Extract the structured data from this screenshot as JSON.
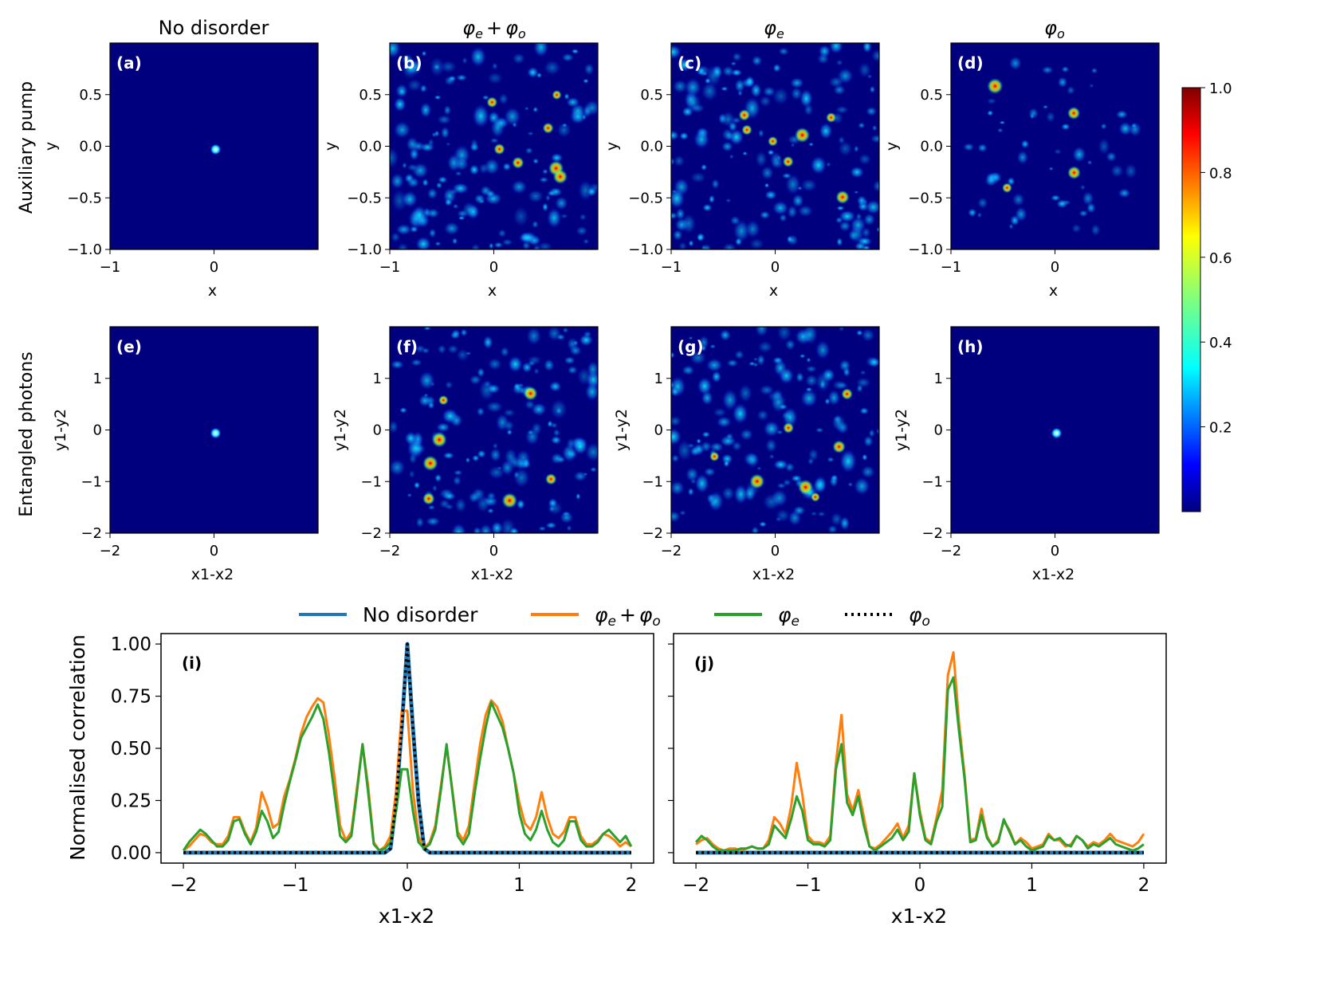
{
  "chart_data": [
    {
      "type": "heatmap",
      "panels": [
        {
          "id": "a",
          "label": "(a)",
          "row": 0,
          "col": 0,
          "pattern": "spot",
          "xlabel": "x",
          "ylabel": "y"
        },
        {
          "id": "b",
          "label": "(b)",
          "row": 0,
          "col": 1,
          "pattern": "speckle",
          "xlabel": "x",
          "ylabel": "y"
        },
        {
          "id": "c",
          "label": "(c)",
          "row": 0,
          "col": 2,
          "pattern": "speckle",
          "xlabel": "x",
          "ylabel": "y"
        },
        {
          "id": "d",
          "label": "(d)",
          "row": 0,
          "col": 3,
          "pattern": "sparse",
          "xlabel": "x",
          "ylabel": "y"
        },
        {
          "id": "e",
          "label": "(e)",
          "row": 1,
          "col": 0,
          "pattern": "spot",
          "xlabel": "x1-x2",
          "ylabel": "y1-y2"
        },
        {
          "id": "f",
          "label": "(f)",
          "row": 1,
          "col": 1,
          "pattern": "speckle",
          "xlabel": "x1-x2",
          "ylabel": "y1-y2"
        },
        {
          "id": "g",
          "label": "(g)",
          "row": 1,
          "col": 2,
          "pattern": "speckle",
          "xlabel": "x1-x2",
          "ylabel": "y1-y2"
        },
        {
          "id": "h",
          "label": "(h)",
          "row": 1,
          "col": 3,
          "pattern": "spot",
          "xlabel": "x1-x2",
          "ylabel": "y1-y2"
        }
      ],
      "column_titles": [
        "No disorder",
        "φe + φo",
        "φe",
        "φo"
      ],
      "column_title_parts": [
        {
          "main": "No disorder"
        },
        {
          "main": "φ",
          "sub": "e",
          "plus": "+",
          "main2": "φ",
          "sub2": "o"
        },
        {
          "main": "φ",
          "sub": "e"
        },
        {
          "main": "φ",
          "sub": "o"
        }
      ],
      "row_titles": [
        "Auxiliary pump",
        "Entangled photons"
      ],
      "row0_axes": {
        "xlim": [
          -1.0,
          1.0
        ],
        "ylim": [
          -1.0,
          1.0
        ],
        "xticks": [
          -1,
          0
        ],
        "xtick_labels": [
          "−1",
          "0"
        ],
        "yticks": [
          -1.0,
          -0.5,
          0.0,
          0.5
        ],
        "ytick_labels": [
          "−1.0",
          "−0.5",
          "0.0",
          "0.5"
        ]
      },
      "row1_axes": {
        "xlim": [
          -2.0,
          2.0
        ],
        "ylim": [
          -2.0,
          2.0
        ],
        "xticks": [
          -2,
          0
        ],
        "xtick_labels": [
          "−2",
          "0"
        ],
        "yticks": [
          -2,
          -1,
          0,
          1
        ],
        "ytick_labels": [
          "−2",
          "−1",
          "0",
          "1"
        ]
      },
      "colorbar": {
        "range": [
          0.0,
          1.0
        ],
        "ticks": [
          0.2,
          0.4,
          0.6,
          0.8,
          1.0
        ],
        "tick_labels": [
          "0.2",
          "0.4",
          "0.6",
          "0.8",
          "1.0"
        ],
        "colormap": "jet"
      }
    },
    {
      "type": "line",
      "panels": [
        {
          "id": "i",
          "label": "(i)"
        },
        {
          "id": "j",
          "label": "(j)"
        }
      ],
      "xlabel": "x1-x2",
      "ylabel": "Normalised correlation",
      "xlim": [
        -2.2,
        2.2
      ],
      "ylim": [
        -0.05,
        1.05
      ],
      "xticks": [
        -2,
        -1,
        0,
        1,
        2
      ],
      "xtick_labels": [
        "−2",
        "−1",
        "0",
        "1",
        "2"
      ],
      "yticks": [
        0.0,
        0.25,
        0.5,
        0.75,
        1.0
      ],
      "ytick_labels": [
        "0.00",
        "0.25",
        "0.50",
        "0.75",
        "1.00"
      ],
      "legend": [
        {
          "name": "No disorder",
          "color": "#1f77b4",
          "style": "solid"
        },
        {
          "name": "φe + φo",
          "color": "#ff7f0e",
          "style": "solid"
        },
        {
          "name": "φe",
          "color": "#2ca02c",
          "style": "solid"
        },
        {
          "name": "φo",
          "color": "#000000",
          "style": "dotted"
        }
      ],
      "legend_parts": [
        {
          "main": "No disorder"
        },
        {
          "main": "φ",
          "sub": "e",
          "plus": "+",
          "main2": "φ",
          "sub2": "o"
        },
        {
          "main": "φ",
          "sub": "e"
        },
        {
          "main": "φ",
          "sub": "o"
        }
      ],
      "x": [
        -2.0,
        -1.95,
        -1.9,
        -1.85,
        -1.8,
        -1.75,
        -1.7,
        -1.65,
        -1.6,
        -1.55,
        -1.5,
        -1.45,
        -1.4,
        -1.35,
        -1.3,
        -1.25,
        -1.2,
        -1.15,
        -1.1,
        -1.05,
        -1.0,
        -0.95,
        -0.9,
        -0.85,
        -0.8,
        -0.75,
        -0.7,
        -0.65,
        -0.6,
        -0.55,
        -0.5,
        -0.45,
        -0.4,
        -0.35,
        -0.3,
        -0.25,
        -0.2,
        -0.15,
        -0.1,
        -0.05,
        0.0,
        0.05,
        0.1,
        0.15,
        0.2,
        0.25,
        0.3,
        0.35,
        0.4,
        0.45,
        0.5,
        0.55,
        0.6,
        0.65,
        0.7,
        0.75,
        0.8,
        0.85,
        0.9,
        0.95,
        1.0,
        1.05,
        1.1,
        1.15,
        1.2,
        1.25,
        1.3,
        1.35,
        1.4,
        1.45,
        1.5,
        1.55,
        1.6,
        1.65,
        1.7,
        1.75,
        1.8,
        1.85,
        1.9,
        1.95,
        2.0
      ],
      "series_i": [
        {
          "name": "No disorder",
          "values": [
            0,
            0,
            0,
            0,
            0,
            0,
            0,
            0,
            0,
            0,
            0,
            0,
            0,
            0,
            0,
            0,
            0,
            0,
            0,
            0,
            0,
            0,
            0,
            0,
            0,
            0,
            0,
            0,
            0,
            0,
            0,
            0,
            0,
            0,
            0,
            0,
            0,
            0.02,
            0.25,
            0.6,
            1.0,
            0.6,
            0.25,
            0.02,
            0,
            0,
            0,
            0,
            0,
            0,
            0,
            0,
            0,
            0,
            0,
            0,
            0,
            0,
            0,
            0,
            0,
            0,
            0,
            0,
            0,
            0,
            0,
            0,
            0,
            0,
            0,
            0,
            0,
            0,
            0,
            0,
            0,
            0,
            0,
            0,
            0
          ]
        },
        {
          "name": "φe + φo",
          "values": [
            0.01,
            0.03,
            0.06,
            0.09,
            0.08,
            0.05,
            0.04,
            0.04,
            0.08,
            0.17,
            0.17,
            0.1,
            0.05,
            0.12,
            0.29,
            0.22,
            0.12,
            0.14,
            0.27,
            0.35,
            0.45,
            0.57,
            0.65,
            0.7,
            0.74,
            0.72,
            0.56,
            0.36,
            0.13,
            0.06,
            0.1,
            0.31,
            0.52,
            0.32,
            0.05,
            0.01,
            0.03,
            0.08,
            0.3,
            0.68,
            0.68,
            0.3,
            0.08,
            0.02,
            0.05,
            0.13,
            0.32,
            0.51,
            0.31,
            0.1,
            0.06,
            0.13,
            0.33,
            0.52,
            0.66,
            0.73,
            0.7,
            0.63,
            0.5,
            0.38,
            0.24,
            0.14,
            0.11,
            0.17,
            0.29,
            0.17,
            0.09,
            0.07,
            0.1,
            0.17,
            0.17,
            0.08,
            0.04,
            0.04,
            0.06,
            0.09,
            0.08,
            0.06,
            0.03,
            0.05,
            0.03
          ]
        },
        {
          "name": "φe",
          "values": [
            0.01,
            0.05,
            0.08,
            0.11,
            0.09,
            0.06,
            0.03,
            0.03,
            0.06,
            0.15,
            0.16,
            0.09,
            0.04,
            0.1,
            0.2,
            0.15,
            0.07,
            0.1,
            0.23,
            0.34,
            0.44,
            0.55,
            0.6,
            0.65,
            0.71,
            0.64,
            0.48,
            0.28,
            0.08,
            0.05,
            0.08,
            0.29,
            0.52,
            0.29,
            0.04,
            0.01,
            0.02,
            0.05,
            0.2,
            0.4,
            0.4,
            0.2,
            0.05,
            0.02,
            0.04,
            0.11,
            0.3,
            0.52,
            0.3,
            0.08,
            0.04,
            0.09,
            0.28,
            0.45,
            0.6,
            0.72,
            0.66,
            0.6,
            0.5,
            0.38,
            0.19,
            0.09,
            0.06,
            0.11,
            0.2,
            0.11,
            0.05,
            0.03,
            0.06,
            0.15,
            0.15,
            0.06,
            0.03,
            0.03,
            0.05,
            0.09,
            0.11,
            0.08,
            0.05,
            0.08,
            0.03
          ]
        },
        {
          "name": "φo",
          "values": [
            0,
            0,
            0,
            0,
            0,
            0,
            0,
            0,
            0,
            0,
            0,
            0,
            0,
            0,
            0,
            0,
            0,
            0,
            0,
            0,
            0,
            0,
            0,
            0,
            0,
            0,
            0,
            0,
            0,
            0,
            0,
            0,
            0,
            0,
            0,
            0,
            0,
            0.02,
            0.25,
            0.6,
            1.0,
            0.6,
            0.25,
            0.02,
            0,
            0,
            0,
            0,
            0,
            0,
            0,
            0,
            0,
            0,
            0,
            0,
            0,
            0,
            0,
            0,
            0,
            0,
            0,
            0,
            0,
            0,
            0,
            0,
            0,
            0,
            0,
            0,
            0,
            0,
            0,
            0,
            0,
            0,
            0,
            0,
            0
          ]
        }
      ],
      "series_j": [
        {
          "name": "No disorder",
          "values": [
            0,
            0,
            0,
            0,
            0,
            0,
            0,
            0,
            0,
            0,
            0,
            0,
            0,
            0,
            0,
            0,
            0,
            0,
            0,
            0,
            0,
            0,
            0,
            0,
            0,
            0,
            0,
            0,
            0,
            0,
            0,
            0,
            0,
            0,
            0,
            0,
            0,
            0,
            0,
            0,
            0,
            0,
            0,
            0,
            0,
            0,
            0,
            0,
            0,
            0,
            0,
            0,
            0,
            0,
            0,
            0,
            0,
            0,
            0,
            0,
            0,
            0,
            0,
            0,
            0,
            0,
            0,
            0,
            0,
            0,
            0,
            0,
            0,
            0,
            0,
            0,
            0,
            0,
            0,
            0,
            0
          ]
        },
        {
          "name": "φe + φo",
          "values": [
            0.04,
            0.06,
            0.07,
            0.04,
            0.02,
            0.01,
            0.02,
            0.02,
            0.01,
            0.02,
            0.03,
            0.02,
            0.02,
            0.06,
            0.17,
            0.14,
            0.09,
            0.22,
            0.43,
            0.28,
            0.08,
            0.05,
            0.05,
            0.04,
            0.08,
            0.43,
            0.66,
            0.28,
            0.2,
            0.3,
            0.17,
            0.03,
            0.02,
            0.04,
            0.07,
            0.1,
            0.14,
            0.07,
            0.13,
            0.38,
            0.2,
            0.07,
            0.05,
            0.17,
            0.3,
            0.85,
            0.96,
            0.62,
            0.37,
            0.06,
            0.07,
            0.21,
            0.08,
            0.03,
            0.06,
            0.15,
            0.11,
            0.04,
            0.07,
            0.05,
            0.02,
            0.03,
            0.04,
            0.09,
            0.06,
            0.06,
            0.03,
            0.04,
            0.08,
            0.06,
            0.03,
            0.05,
            0.04,
            0.06,
            0.09,
            0.06,
            0.05,
            0.04,
            0.03,
            0.05,
            0.09
          ]
        },
        {
          "name": "φe",
          "values": [
            0.05,
            0.08,
            0.06,
            0.03,
            0.01,
            0.01,
            0.01,
            0.01,
            0.02,
            0.02,
            0.03,
            0.02,
            0.02,
            0.04,
            0.13,
            0.1,
            0.07,
            0.16,
            0.27,
            0.2,
            0.06,
            0.04,
            0.04,
            0.03,
            0.06,
            0.4,
            0.52,
            0.24,
            0.18,
            0.27,
            0.13,
            0.03,
            0.01,
            0.03,
            0.05,
            0.07,
            0.11,
            0.06,
            0.1,
            0.38,
            0.18,
            0.06,
            0.04,
            0.15,
            0.22,
            0.78,
            0.84,
            0.58,
            0.35,
            0.05,
            0.06,
            0.18,
            0.07,
            0.03,
            0.05,
            0.16,
            0.1,
            0.04,
            0.06,
            0.03,
            0.01,
            0.02,
            0.03,
            0.08,
            0.06,
            0.07,
            0.04,
            0.03,
            0.08,
            0.06,
            0.02,
            0.04,
            0.03,
            0.05,
            0.07,
            0.04,
            0.03,
            0.02,
            0.01,
            0.02,
            0.04
          ]
        },
        {
          "name": "φo",
          "values": [
            0,
            0,
            0,
            0,
            0,
            0,
            0,
            0,
            0,
            0,
            0,
            0,
            0,
            0,
            0,
            0,
            0,
            0,
            0,
            0,
            0,
            0,
            0,
            0,
            0,
            0,
            0,
            0,
            0,
            0,
            0,
            0,
            0,
            0,
            0,
            0,
            0,
            0,
            0,
            0,
            0,
            0,
            0,
            0,
            0,
            0,
            0,
            0,
            0,
            0,
            0,
            0,
            0,
            0,
            0,
            0,
            0,
            0,
            0,
            0,
            0,
            0,
            0,
            0,
            0,
            0,
            0,
            0,
            0,
            0,
            0,
            0,
            0,
            0,
            0,
            0,
            0,
            0,
            0,
            0,
            0
          ]
        }
      ]
    }
  ]
}
